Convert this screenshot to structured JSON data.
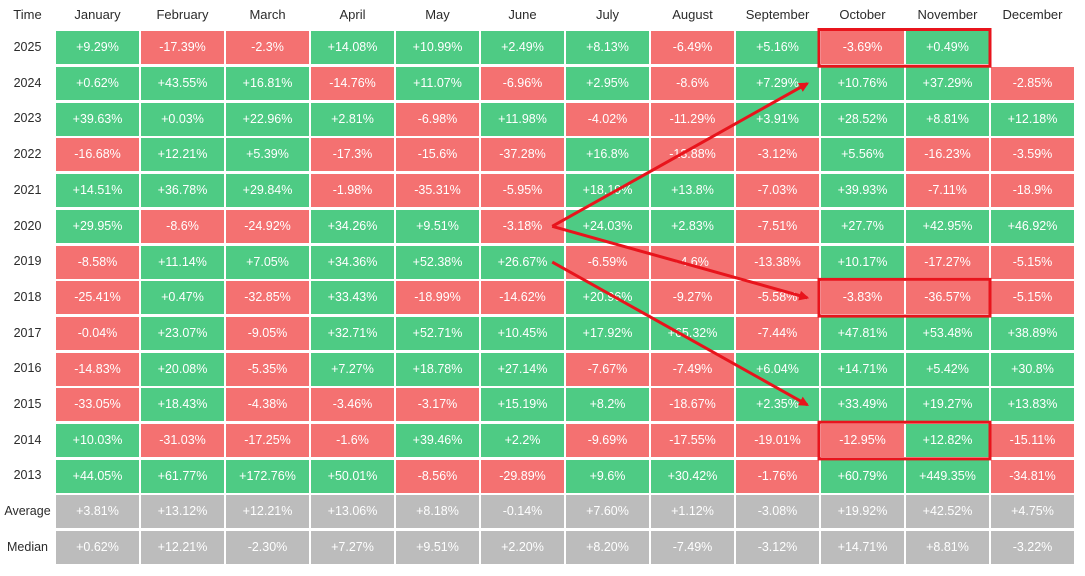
{
  "chart_data": {
    "type": "table",
    "corner_label": "Time",
    "columns": [
      "January",
      "February",
      "March",
      "April",
      "May",
      "June",
      "July",
      "August",
      "September",
      "October",
      "November",
      "December"
    ],
    "rows": [
      {
        "label": "2025",
        "values": [
          "+9.29%",
          "-17.39%",
          "-2.3%",
          "+14.08%",
          "+10.99%",
          "+2.49%",
          "+8.13%",
          "-6.49%",
          "+5.16%",
          "-3.69%",
          "+0.49%",
          ""
        ]
      },
      {
        "label": "2024",
        "values": [
          "+0.62%",
          "+43.55%",
          "+16.81%",
          "-14.76%",
          "+11.07%",
          "-6.96%",
          "+2.95%",
          "-8.6%",
          "+7.29%",
          "+10.76%",
          "+37.29%",
          "-2.85%"
        ]
      },
      {
        "label": "2023",
        "values": [
          "+39.63%",
          "+0.03%",
          "+22.96%",
          "+2.81%",
          "-6.98%",
          "+11.98%",
          "-4.02%",
          "-11.29%",
          "+3.91%",
          "+28.52%",
          "+8.81%",
          "+12.18%"
        ]
      },
      {
        "label": "2022",
        "values": [
          "-16.68%",
          "+12.21%",
          "+5.39%",
          "-17.3%",
          "-15.6%",
          "-37.28%",
          "+16.8%",
          "-13.88%",
          "-3.12%",
          "+5.56%",
          "-16.23%",
          "-3.59%"
        ]
      },
      {
        "label": "2021",
        "values": [
          "+14.51%",
          "+36.78%",
          "+29.84%",
          "-1.98%",
          "-35.31%",
          "-5.95%",
          "+18.19%",
          "+13.8%",
          "-7.03%",
          "+39.93%",
          "-7.11%",
          "-18.9%"
        ]
      },
      {
        "label": "2020",
        "values": [
          "+29.95%",
          "-8.6%",
          "-24.92%",
          "+34.26%",
          "+9.51%",
          "-3.18%",
          "+24.03%",
          "+2.83%",
          "-7.51%",
          "+27.7%",
          "+42.95%",
          "+46.92%"
        ]
      },
      {
        "label": "2019",
        "values": [
          "-8.58%",
          "+11.14%",
          "+7.05%",
          "+34.36%",
          "+52.38%",
          "+26.67%",
          "-6.59%",
          "-4.6%",
          "-13.38%",
          "+10.17%",
          "-17.27%",
          "-5.15%"
        ]
      },
      {
        "label": "2018",
        "values": [
          "-25.41%",
          "+0.47%",
          "-32.85%",
          "+33.43%",
          "-18.99%",
          "-14.62%",
          "+20.96%",
          "-9.27%",
          "-5.58%",
          "-3.83%",
          "-36.57%",
          "-5.15%"
        ]
      },
      {
        "label": "2017",
        "values": [
          "-0.04%",
          "+23.07%",
          "-9.05%",
          "+32.71%",
          "+52.71%",
          "+10.45%",
          "+17.92%",
          "+65.32%",
          "-7.44%",
          "+47.81%",
          "+53.48%",
          "+38.89%"
        ]
      },
      {
        "label": "2016",
        "values": [
          "-14.83%",
          "+20.08%",
          "-5.35%",
          "+7.27%",
          "+18.78%",
          "+27.14%",
          "-7.67%",
          "-7.49%",
          "+6.04%",
          "+14.71%",
          "+5.42%",
          "+30.8%"
        ]
      },
      {
        "label": "2015",
        "values": [
          "-33.05%",
          "+18.43%",
          "-4.38%",
          "-3.46%",
          "-3.17%",
          "+15.19%",
          "+8.2%",
          "-18.67%",
          "+2.35%",
          "+33.49%",
          "+19.27%",
          "+13.83%"
        ]
      },
      {
        "label": "2014",
        "values": [
          "+10.03%",
          "-31.03%",
          "-17.25%",
          "-1.6%",
          "+39.46%",
          "+2.2%",
          "-9.69%",
          "-17.55%",
          "-19.01%",
          "-12.95%",
          "+12.82%",
          "-15.11%"
        ]
      },
      {
        "label": "2013",
        "values": [
          "+44.05%",
          "+61.77%",
          "+172.76%",
          "+50.01%",
          "-8.56%",
          "-29.89%",
          "+9.6%",
          "+30.42%",
          "-1.76%",
          "+60.79%",
          "+449.35%",
          "-34.81%"
        ]
      }
    ],
    "summary_rows": [
      {
        "label": "Average",
        "values": [
          "+3.81%",
          "+13.12%",
          "+12.21%",
          "+13.06%",
          "+8.18%",
          "-0.14%",
          "+7.60%",
          "+1.12%",
          "-3.08%",
          "+19.92%",
          "+42.52%",
          "+4.75%"
        ]
      },
      {
        "label": "Median",
        "values": [
          "+0.62%",
          "+12.21%",
          "-2.30%",
          "+7.27%",
          "+9.51%",
          "+2.20%",
          "+8.20%",
          "-7.49%",
          "-3.12%",
          "+14.71%",
          "+8.81%",
          "-3.22%"
        ]
      }
    ],
    "colors": {
      "positive": "#4ecb84",
      "negative": "#f47171",
      "summary": "#bcbcbc",
      "annotation": "#e8141c"
    },
    "highlights": [
      {
        "row": "2025",
        "from_column": "October",
        "to_column": "November"
      },
      {
        "row": "2018",
        "from_column": "October",
        "to_column": "November"
      },
      {
        "row": "2014",
        "from_column": "October",
        "to_column": "November"
      }
    ],
    "arrows": [
      {
        "from": {
          "row": "2020",
          "column": "June"
        },
        "to": {
          "row": "2024",
          "column": "September"
        }
      },
      {
        "from": {
          "row": "2020",
          "column": "June"
        },
        "to": {
          "row": "2018",
          "column": "September"
        }
      },
      {
        "from": {
          "row": "2019",
          "column": "June"
        },
        "to": {
          "row": "2015",
          "column": "September"
        }
      }
    ]
  }
}
